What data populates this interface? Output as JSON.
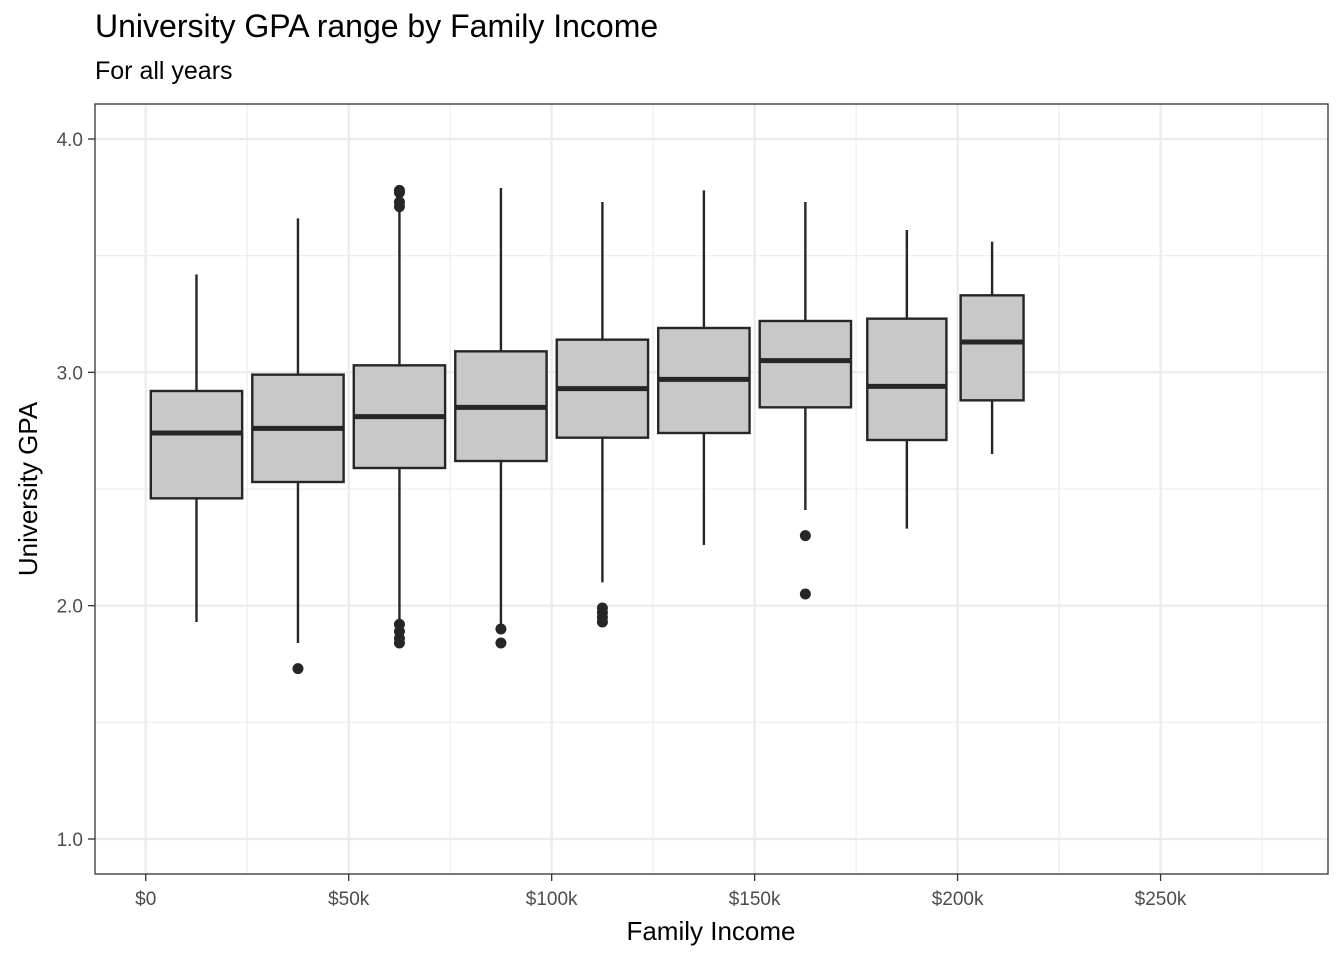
{
  "title": "University GPA range by Family Income",
  "subtitle": "For all years",
  "chart_data": {
    "type": "boxplot",
    "xlabel": "Family Income",
    "ylabel": "University GPA",
    "xlim": [
      -12500,
      291250
    ],
    "ylim": [
      0.85,
      4.15
    ],
    "x_ticks": [
      {
        "value": 0,
        "label": "$0"
      },
      {
        "value": 50000,
        "label": "$50k"
      },
      {
        "value": 100000,
        "label": "$100k"
      },
      {
        "value": 150000,
        "label": "$150k"
      },
      {
        "value": 200000,
        "label": "$200k"
      },
      {
        "value": 250000,
        "label": "$250k"
      }
    ],
    "y_ticks": [
      {
        "value": 1.0,
        "label": "1.0"
      },
      {
        "value": 2.0,
        "label": "2.0"
      },
      {
        "value": 3.0,
        "label": "3.0"
      },
      {
        "value": 4.0,
        "label": "4.0"
      }
    ],
    "grid": true,
    "box_fill": "#c8c8c8",
    "box_stroke": "#262626",
    "boxes": [
      {
        "x": 12500,
        "width": 22500,
        "low": 1.93,
        "q1": 2.46,
        "median": 2.74,
        "q3": 2.92,
        "high": 3.42,
        "outliers": []
      },
      {
        "x": 37500,
        "width": 22500,
        "low": 1.84,
        "q1": 2.53,
        "median": 2.76,
        "q3": 2.99,
        "high": 3.66,
        "outliers": [
          1.73
        ]
      },
      {
        "x": 62500,
        "width": 22500,
        "low": 1.92,
        "q1": 2.59,
        "median": 2.81,
        "q3": 3.03,
        "high": 3.69,
        "outliers": [
          3.78,
          3.77,
          3.73,
          3.71,
          1.92,
          1.89,
          1.86,
          1.84
        ]
      },
      {
        "x": 87500,
        "width": 22500,
        "low": 1.92,
        "q1": 2.62,
        "median": 2.85,
        "q3": 3.09,
        "high": 3.79,
        "outliers": [
          1.9,
          1.84
        ]
      },
      {
        "x": 112500,
        "width": 22500,
        "low": 2.1,
        "q1": 2.72,
        "median": 2.93,
        "q3": 3.14,
        "high": 3.73,
        "outliers": [
          1.99,
          1.97,
          1.95,
          1.93
        ]
      },
      {
        "x": 137500,
        "width": 22500,
        "low": 2.26,
        "q1": 2.74,
        "median": 2.97,
        "q3": 3.19,
        "high": 3.78,
        "outliers": []
      },
      {
        "x": 162500,
        "width": 22500,
        "low": 2.41,
        "q1": 2.85,
        "median": 3.05,
        "q3": 3.22,
        "high": 3.73,
        "outliers": [
          2.3,
          2.05
        ]
      },
      {
        "x": 187500,
        "width": 19500,
        "low": 2.33,
        "q1": 2.71,
        "median": 2.94,
        "q3": 3.23,
        "high": 3.61,
        "outliers": []
      },
      {
        "x": 208500,
        "width": 15500,
        "low": 2.65,
        "q1": 2.88,
        "median": 3.13,
        "q3": 3.33,
        "high": 3.56,
        "outliers": []
      }
    ]
  }
}
